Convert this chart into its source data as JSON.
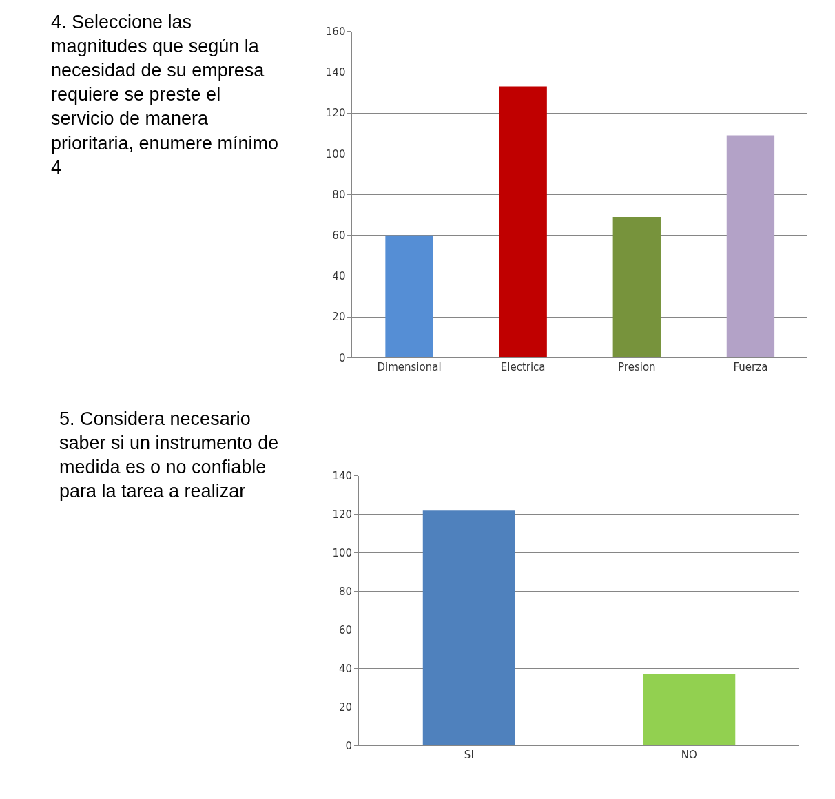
{
  "chart_data": [
    {
      "type": "bar",
      "title": "4. Seleccione las magnitudes que según la necesidad de su empresa requiere se preste el servicio de manera prioritaria, enumere mínimo 4",
      "categories": [
        "Dimensional",
        "Electrica",
        "Presion",
        "Fuerza"
      ],
      "values": [
        60,
        133,
        69,
        109
      ],
      "colors": [
        "#558ed5",
        "#c00000",
        "#77933c",
        "#b3a2c7"
      ],
      "ylim": [
        0,
        160
      ],
      "yticks": [
        0,
        20,
        40,
        60,
        80,
        100,
        120,
        140,
        160
      ],
      "grid": "y",
      "legend": false
    },
    {
      "type": "bar",
      "title": "5. Considera necesario saber si un instrumento de medida es o no confiable para la tarea a realizar",
      "categories": [
        "SI",
        "NO"
      ],
      "values": [
        122,
        37
      ],
      "colors": [
        "#4f81bd",
        "#92d050"
      ],
      "ylim": [
        0,
        140
      ],
      "yticks": [
        0,
        20,
        40,
        60,
        80,
        100,
        120,
        140
      ],
      "grid": "y",
      "legend": false
    }
  ]
}
